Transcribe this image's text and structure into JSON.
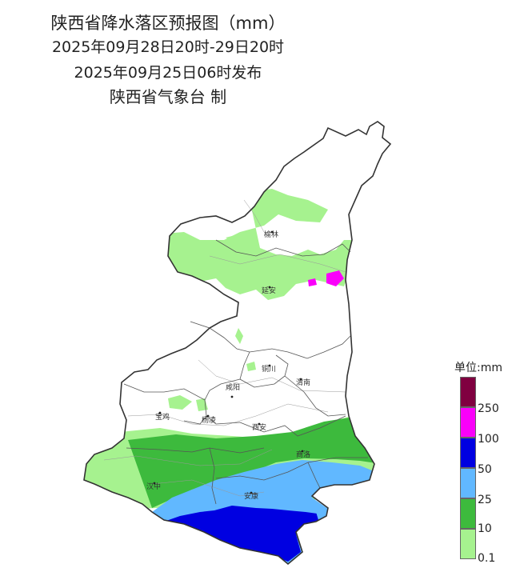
{
  "title": {
    "line1": "陕西省降水落区预报图（mm）",
    "line2": "2025年09月28日20时-29日20时",
    "line3": "2025年09月25日06时发布",
    "line4": "陕西省气象台 制"
  },
  "map": {
    "cities": [
      {
        "id": "yulin",
        "name": "榆林"
      },
      {
        "id": "yanan",
        "name": "延安"
      },
      {
        "id": "tongchuan",
        "name": "铜川"
      },
      {
        "id": "weinan",
        "name": "渭南"
      },
      {
        "id": "xianyang",
        "name": "咸阳"
      },
      {
        "id": "baoji",
        "name": "宝鸡"
      },
      {
        "id": "yangling",
        "name": "杨凌"
      },
      {
        "id": "xian",
        "name": "西安"
      },
      {
        "id": "shangluo",
        "name": "商洛"
      },
      {
        "id": "hanzhong",
        "name": "汉中"
      },
      {
        "id": "ankang",
        "name": "安康"
      }
    ],
    "colors": {
      "none": "#ffffff",
      "r0_1": "#a6f28f",
      "r10": "#3dba3d",
      "r25": "#61b8ff",
      "r50": "#0000e1",
      "r100": "#fa00fa",
      "r250": "#800040",
      "border": "#333333"
    }
  },
  "legend": {
    "title": "单位:mm",
    "levels": [
      {
        "label": "250",
        "color": "#800040"
      },
      {
        "label": "100",
        "color": "#fa00fa"
      },
      {
        "label": "50",
        "color": "#0000e1"
      },
      {
        "label": "25",
        "color": "#61b8ff"
      },
      {
        "label": "10",
        "color": "#3dba3d"
      },
      {
        "label": "0.1",
        "color": "#a6f28f"
      }
    ]
  }
}
